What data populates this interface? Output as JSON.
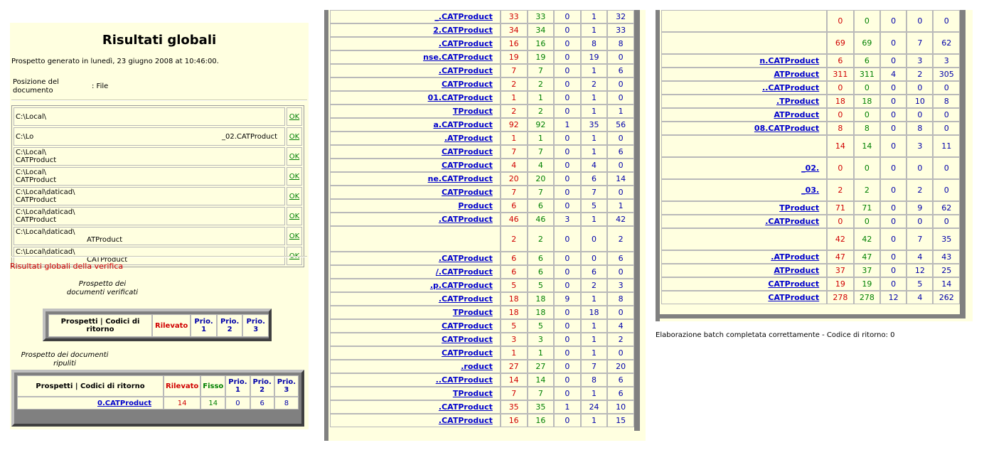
{
  "panel1": {
    "title": "Risultati globali",
    "generated": "Prospetto generato in lunedì, 23 giugno 2008 at 10:46:00.",
    "position_label": "Posizione del documento",
    "position_value": ": File",
    "files": [
      {
        "path": "C:\\Local\\",
        "name": "",
        "status": "OK"
      },
      {
        "path": "C:\\Lo",
        "name": "_02.CATProduct",
        "status": "OK"
      },
      {
        "path": "C:\\Local\\",
        "name": "CATProduct",
        "status": "OK"
      },
      {
        "path": "C:\\Local\\",
        "name": "CATProduct",
        "status": "OK"
      },
      {
        "path": "C:\\Local\\daticad\\",
        "name": "CATProduct",
        "status": "OK"
      },
      {
        "path": "C:\\Local\\daticad\\",
        "name": "CATProduct",
        "status": "OK"
      },
      {
        "path": "C:\\Local\\daticad\\",
        "name": "ATProduct",
        "status": "OK"
      },
      {
        "path": "C:\\Local\\daticad\\",
        "name": "CATProduct",
        "status": "OK"
      }
    ],
    "results_title": "Risultati globali della verifica",
    "verified_label": "Prospetto dei documenti verificati",
    "header_prospetti": "Prospetti | Codici di ritorno",
    "header_rilevato": "Rilevato",
    "header_fisso": "Fisso",
    "header_prio1": "Prio. 1",
    "header_prio2": "Prio. 2",
    "header_prio3": "Prio. 3",
    "cleaned_label": "Prospetto dei documenti ripuliti",
    "cleaned_row": {
      "name": "0.CATProduct",
      "rilevato": "14",
      "fisso": "14",
      "p1": "0",
      "p2": "6",
      "p3": "8"
    }
  },
  "panel2_rows": [
    [
      "_.CATProduct",
      "33",
      "33",
      "0",
      "1",
      "32"
    ],
    [
      "2.CATProduct",
      "34",
      "34",
      "0",
      "1",
      "33"
    ],
    [
      ".CATProduct",
      "16",
      "16",
      "0",
      "8",
      "8"
    ],
    [
      "nse.CATProduct",
      "19",
      "19",
      "0",
      "19",
      "0"
    ],
    [
      ".CATProduct",
      "7",
      "7",
      "0",
      "1",
      "6"
    ],
    [
      "CATProduct",
      "2",
      "2",
      "0",
      "2",
      "0"
    ],
    [
      "01.CATProduct",
      "1",
      "1",
      "0",
      "1",
      "0"
    ],
    [
      "TProduct",
      "2",
      "2",
      "0",
      "1",
      "1"
    ],
    [
      "a.CATProduct",
      "92",
      "92",
      "1",
      "35",
      "56"
    ],
    [
      ".ATProduct",
      "1",
      "1",
      "0",
      "1",
      "0"
    ],
    [
      "CATProduct",
      "7",
      "7",
      "0",
      "1",
      "6"
    ],
    [
      "CATProduct",
      "4",
      "4",
      "0",
      "4",
      "0"
    ],
    [
      "ne.CATProduct",
      "20",
      "20",
      "0",
      "6",
      "14"
    ],
    [
      "CATProduct",
      "7",
      "7",
      "0",
      "7",
      "0"
    ],
    [
      "Product",
      "6",
      "6",
      "0",
      "5",
      "1"
    ],
    [
      ".CATProduct",
      "46",
      "46",
      "3",
      "1",
      "42"
    ],
    [
      "",
      "2",
      "2",
      "0",
      "0",
      "2"
    ],
    [
      ".CATProduct",
      "6",
      "6",
      "0",
      "0",
      "6"
    ],
    [
      "/.CATProduct",
      "6",
      "6",
      "0",
      "6",
      "0"
    ],
    [
      ".p.CATProduct",
      "5",
      "5",
      "0",
      "2",
      "3"
    ],
    [
      ".CATProduct",
      "18",
      "18",
      "9",
      "1",
      "8"
    ],
    [
      "TProduct",
      "18",
      "18",
      "0",
      "18",
      "0"
    ],
    [
      "CATProduct",
      "5",
      "5",
      "0",
      "1",
      "4"
    ],
    [
      "CATProduct",
      "3",
      "3",
      "0",
      "1",
      "2"
    ],
    [
      "CATProduct",
      "1",
      "1",
      "0",
      "1",
      "0"
    ],
    [
      ".roduct",
      "27",
      "27",
      "0",
      "7",
      "20"
    ],
    [
      "..CATProduct",
      "14",
      "14",
      "0",
      "8",
      "6"
    ],
    [
      "TProduct",
      "7",
      "7",
      "0",
      "1",
      "6"
    ],
    [
      ".CATProduct",
      "35",
      "35",
      "1",
      "24",
      "10"
    ],
    [
      ".CATProduct",
      "16",
      "16",
      "0",
      "1",
      "15"
    ]
  ],
  "panel3_rows": [
    [
      "",
      "0",
      "0",
      "0",
      "0",
      "0"
    ],
    [
      "",
      "69",
      "69",
      "0",
      "7",
      "62"
    ],
    [
      "n.CATProduct",
      "6",
      "6",
      "0",
      "3",
      "3"
    ],
    [
      "ATProduct",
      "311",
      "311",
      "4",
      "2",
      "305"
    ],
    [
      "..CATProduct",
      "0",
      "0",
      "0",
      "0",
      "0"
    ],
    [
      ".TProduct",
      "18",
      "18",
      "0",
      "10",
      "8"
    ],
    [
      "ATProduct",
      "0",
      "0",
      "0",
      "0",
      "0"
    ],
    [
      "08.CATProduct",
      "8",
      "8",
      "0",
      "8",
      "0"
    ],
    [
      "",
      "14",
      "14",
      "0",
      "3",
      "11"
    ],
    [
      "_02.",
      "0",
      "0",
      "0",
      "0",
      "0"
    ],
    [
      "_03.",
      "2",
      "2",
      "0",
      "2",
      "0"
    ],
    [
      "TProduct",
      "71",
      "71",
      "0",
      "9",
      "62"
    ],
    [
      ".CATProduct",
      "0",
      "0",
      "0",
      "0",
      "0"
    ],
    [
      "",
      "42",
      "42",
      "0",
      "7",
      "35"
    ],
    [
      ".ATProduct",
      "47",
      "47",
      "0",
      "4",
      "43"
    ],
    [
      "ATProduct",
      "37",
      "37",
      "0",
      "12",
      "25"
    ],
    [
      "CATProduct",
      "19",
      "19",
      "0",
      "5",
      "14"
    ],
    [
      "CATProduct",
      "278",
      "278",
      "12",
      "4",
      "262"
    ]
  ],
  "footer": "Elaborazione batch completata correttamente - Codice di ritorno: 0"
}
